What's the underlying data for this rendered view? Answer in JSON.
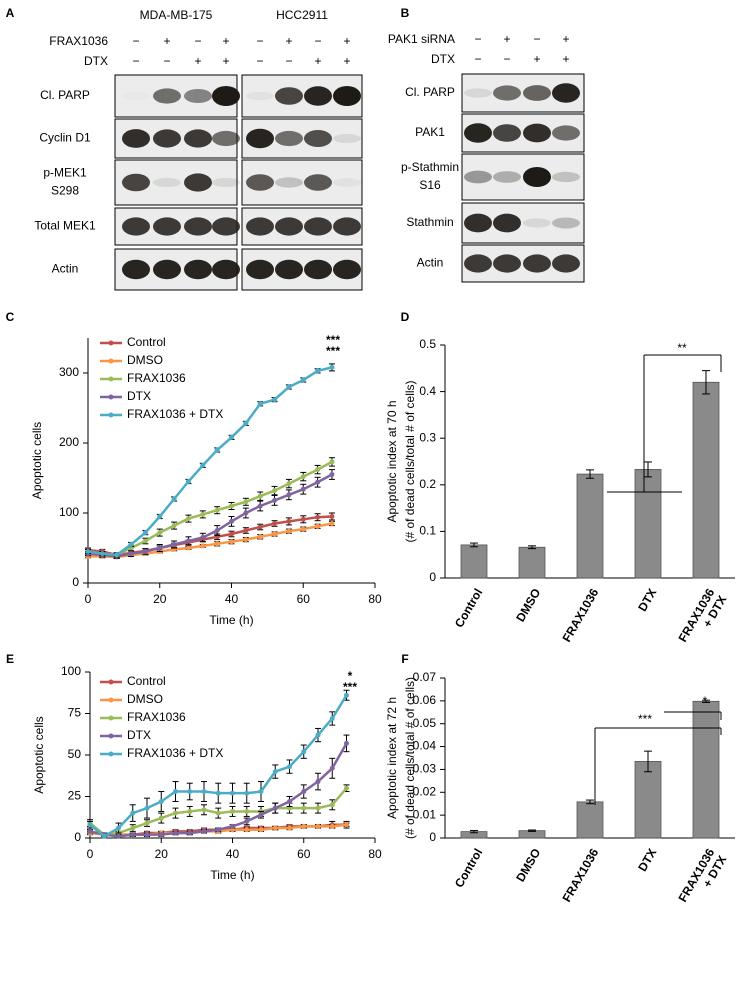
{
  "panel_labels": [
    "A",
    "B",
    "C",
    "D",
    "E",
    "F"
  ],
  "blot_a": {
    "cell_lines": [
      "MDA-MB-175",
      "HCC2911"
    ],
    "treatments": [
      {
        "name": "FRAX1036",
        "signs": [
          "−",
          "+",
          "−",
          "+"
        ]
      },
      {
        "name": "DTX",
        "signs": [
          "−",
          "−",
          "+",
          "+"
        ]
      }
    ],
    "rows": [
      [
        "Cl. PARP"
      ],
      [
        "Cyclin D1"
      ],
      [
        "p-MEK1",
        "S298"
      ],
      [
        "Total MEK1"
      ],
      [
        "Actin"
      ]
    ]
  },
  "blot_b": {
    "treatments": [
      {
        "name": "PAK1 siRNA",
        "signs": [
          "−",
          "+",
          "−",
          "+"
        ]
      },
      {
        "name": "DTX",
        "signs": [
          "−",
          "−",
          "+",
          "+"
        ]
      }
    ],
    "rows": [
      [
        "Cl. PARP"
      ],
      [
        "PAK1"
      ],
      [
        "p-Stathmin",
        "S16"
      ],
      [
        "Stathmin"
      ],
      [
        "Actin"
      ]
    ]
  },
  "chart_data": [
    {
      "type": "line",
      "xlabel": "Time (h)",
      "ylabel": "Apoptotic cells",
      "legend": "upper left",
      "x": [
        0,
        4,
        8,
        12,
        16,
        20,
        24,
        28,
        32,
        36,
        40,
        44,
        48,
        52,
        56,
        60,
        64,
        68
      ],
      "xlim": [
        0,
        80
      ],
      "xticks": [
        0,
        20,
        40,
        60,
        80
      ],
      "ylim": [
        0,
        350
      ],
      "yticks": [
        0,
        100,
        200,
        300
      ],
      "series": [
        {
          "name": "Control",
          "color": "#c0504d",
          "values": [
            47,
            45,
            40,
            43,
            46,
            50,
            54,
            58,
            62,
            66,
            70,
            75,
            80,
            85,
            88,
            91,
            94,
            95
          ],
          "errors": [
            3,
            3,
            3,
            3,
            3,
            3,
            3,
            3,
            3,
            4,
            4,
            4,
            4,
            4,
            5,
            5,
            5,
            5
          ]
        },
        {
          "name": "DMSO",
          "color": "#f79646",
          "values": [
            38,
            38,
            37,
            40,
            42,
            45,
            48,
            50,
            53,
            56,
            59,
            62,
            66,
            70,
            74,
            77,
            81,
            85
          ],
          "errors": [
            2,
            2,
            2,
            2,
            2,
            2,
            2,
            2,
            2,
            3,
            3,
            3,
            3,
            3,
            3,
            3,
            3,
            3
          ]
        },
        {
          "name": "FRAX1036",
          "color": "#9bbb59",
          "values": [
            45,
            42,
            40,
            50,
            60,
            72,
            82,
            92,
            98,
            104,
            110,
            116,
            124,
            132,
            142,
            152,
            162,
            173
          ],
          "errors": [
            3,
            3,
            3,
            4,
            4,
            5,
            5,
            5,
            5,
            5,
            5,
            5,
            6,
            6,
            6,
            6,
            6,
            6
          ]
        },
        {
          "name": "DTX",
          "color": "#8064a2",
          "values": [
            42,
            40,
            38,
            42,
            45,
            50,
            55,
            60,
            65,
            75,
            88,
            100,
            110,
            118,
            126,
            134,
            144,
            155
          ],
          "errors": [
            3,
            3,
            3,
            4,
            4,
            5,
            5,
            6,
            6,
            7,
            7,
            7,
            7,
            7,
            7,
            7,
            7,
            7
          ]
        },
        {
          "name": "FRAX1036 + DTX",
          "color": "#4bacc6",
          "values": [
            45,
            42,
            40,
            55,
            72,
            95,
            120,
            145,
            168,
            190,
            208,
            228,
            256,
            262,
            280,
            290,
            303,
            308
          ],
          "errors": [
            3,
            3,
            3,
            3,
            3,
            3,
            3,
            3,
            3,
            3,
            3,
            3,
            3,
            3,
            3,
            3,
            3,
            5
          ]
        }
      ],
      "annotations": [
        {
          "text": "***",
          "color": "#9bbb59"
        },
        {
          "text": "***",
          "color": "#8064a2"
        }
      ]
    },
    {
      "type": "bar",
      "ylabel": [
        "Apoptotic index at 70 h",
        "(# of dead cells/total # of cells)"
      ],
      "color": "#8a8a8a",
      "categories": [
        [
          "Control"
        ],
        [
          "DMSO"
        ],
        [
          "FRAX1036"
        ],
        [
          "DTX"
        ],
        [
          "FRAX1036",
          "+ DTX"
        ]
      ],
      "values": [
        0.071,
        0.066,
        0.223,
        0.233,
        0.42
      ],
      "errors": [
        0.004,
        0.003,
        0.009,
        0.016,
        0.025
      ],
      "ylim": [
        0,
        0.5
      ],
      "yticks": [
        0,
        0.1,
        0.2,
        0.3,
        0.4,
        0.5
      ],
      "annotations": [
        {
          "text": "**"
        }
      ]
    },
    {
      "type": "line",
      "xlabel": "Time (h)",
      "ylabel": "Apoptotic cells",
      "legend": "upper left",
      "x": [
        0,
        4,
        8,
        12,
        16,
        20,
        24,
        28,
        32,
        36,
        40,
        44,
        48,
        52,
        56,
        60,
        64,
        68,
        72
      ],
      "xlim": [
        0,
        80
      ],
      "xticks": [
        0,
        20,
        40,
        60,
        80
      ],
      "ylim": [
        0,
        100
      ],
      "yticks": [
        0,
        25,
        50,
        75,
        100
      ],
      "series": [
        {
          "name": "Control",
          "color": "#c0504d",
          "values": [
            4,
            2,
            2,
            2,
            3,
            3,
            4,
            4,
            5,
            5,
            5,
            6,
            6,
            6,
            7,
            7,
            7,
            8,
            8
          ],
          "errors": [
            1,
            1,
            1,
            1,
            1,
            1,
            1,
            1,
            1,
            1,
            1,
            1,
            1,
            1,
            1,
            1,
            1,
            2,
            2
          ]
        },
        {
          "name": "DMSO",
          "color": "#f79646",
          "values": [
            3,
            2,
            2,
            2,
            2,
            3,
            3,
            3,
            4,
            4,
            5,
            5,
            5,
            6,
            6,
            7,
            7,
            7,
            8
          ],
          "errors": [
            1,
            1,
            1,
            1,
            1,
            1,
            1,
            1,
            1,
            1,
            1,
            1,
            1,
            1,
            1,
            1,
            1,
            1,
            1
          ]
        },
        {
          "name": "FRAX1036",
          "color": "#9bbb59",
          "values": [
            9,
            2,
            3,
            6,
            9,
            12,
            15,
            16,
            17,
            15,
            16,
            16,
            16,
            18,
            18,
            18,
            18,
            20,
            30
          ],
          "errors": [
            2,
            1,
            1,
            2,
            2,
            3,
            3,
            3,
            3,
            3,
            3,
            3,
            3,
            3,
            3,
            3,
            3,
            3,
            2
          ]
        },
        {
          "name": "DTX",
          "color": "#8064a2",
          "values": [
            4,
            2,
            1,
            2,
            2,
            2,
            3,
            3,
            4,
            5,
            7,
            10,
            14,
            18,
            22,
            28,
            34,
            42,
            57
          ],
          "errors": [
            1,
            1,
            1,
            1,
            1,
            1,
            1,
            1,
            1,
            1,
            1,
            2,
            2,
            3,
            3,
            4,
            5,
            6,
            5
          ]
        },
        {
          "name": "FRAX1036 + DTX",
          "color": "#4bacc6",
          "values": [
            8,
            1,
            6,
            15,
            18,
            22,
            28,
            28,
            28,
            27,
            27,
            27,
            28,
            40,
            43,
            52,
            62,
            72,
            86
          ],
          "errors": [
            2,
            1,
            3,
            5,
            6,
            6,
            6,
            5,
            6,
            6,
            6,
            6,
            6,
            4,
            4,
            4,
            4,
            4,
            3
          ]
        }
      ],
      "annotations": [
        {
          "text": "*",
          "color": "#8064a2"
        },
        {
          "text": "***",
          "color": "#9bbb59"
        }
      ]
    },
    {
      "type": "bar",
      "ylabel": [
        "Apoptotic index at 72 h",
        "(# of dead cells/total # of cells)"
      ],
      "color": "#8a8a8a",
      "categories": [
        [
          "Control"
        ],
        [
          "DMSO"
        ],
        [
          "FRAX1036"
        ],
        [
          "DTX"
        ],
        [
          "FRAX1036",
          "+ DTX"
        ]
      ],
      "values": [
        0.0028,
        0.0032,
        0.0158,
        0.0335,
        0.0598
      ],
      "errors": [
        0.0005,
        0.0003,
        0.0008,
        0.0045,
        0.0005
      ],
      "ylim": [
        0,
        0.07
      ],
      "yticks": [
        0,
        0.01,
        0.02,
        0.03,
        0.04,
        0.05,
        0.06,
        0.07
      ],
      "annotations": [
        {
          "text": "***"
        },
        {
          "text": "*"
        }
      ]
    }
  ]
}
